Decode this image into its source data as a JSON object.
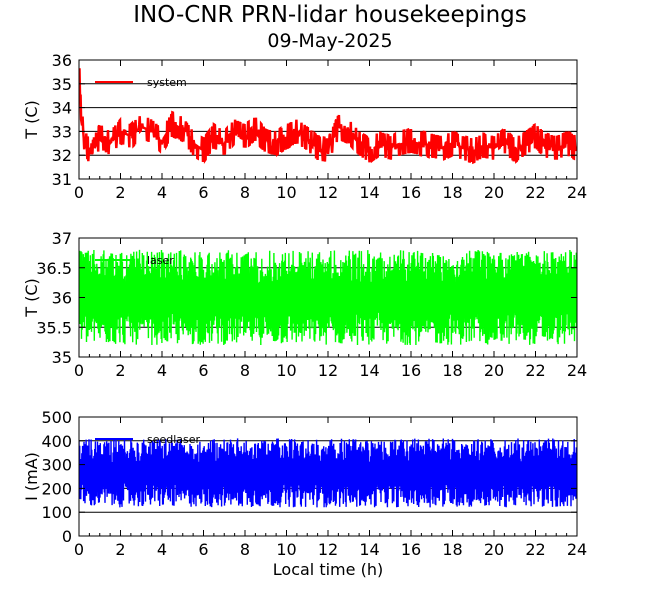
{
  "figure": {
    "title": "INO-CNR PRN-lidar housekeepings",
    "subtitle": "09-May-2025"
  },
  "chart_data": [
    {
      "type": "line",
      "xlabel": "",
      "ylabel": "T (C)",
      "xlim": [
        0,
        24
      ],
      "ylim": [
        31,
        36
      ],
      "xticks": [
        "0",
        "2",
        "4",
        "6",
        "8",
        "10",
        "12",
        "14",
        "16",
        "18",
        "20",
        "22",
        "24"
      ],
      "yticks": [
        "31",
        "32",
        "33",
        "34",
        "35",
        "36"
      ],
      "grid": true,
      "legend_position": "top-left",
      "series": [
        {
          "name": "system",
          "color": "#ff0000",
          "description": "noisy trace stepping between ~32 and ~33.5 C",
          "x": [
            0,
            0.05,
            0.1,
            0.3,
            0.6,
            1.0,
            1.5,
            2.0,
            2.5,
            3.0,
            3.5,
            4.0,
            4.5,
            5.0,
            5.5,
            6.0,
            6.5,
            7.0,
            7.5,
            8.0,
            8.5,
            9.0,
            9.5,
            10.0,
            10.5,
            11.0,
            11.5,
            12.0,
            12.5,
            13.0,
            13.5,
            14.0,
            14.5,
            15.0,
            15.5,
            16.0,
            16.5,
            17.0,
            17.5,
            18.0,
            18.5,
            19.0,
            19.5,
            20.0,
            20.5,
            21.0,
            21.5,
            22.0,
            22.5,
            23.0,
            23.5,
            24.0
          ],
          "y": [
            35.6,
            34.5,
            33.5,
            32.5,
            32.0,
            32.8,
            32.5,
            33.0,
            32.8,
            33.2,
            33.0,
            32.6,
            33.3,
            33.1,
            32.5,
            32.2,
            32.8,
            32.5,
            33.0,
            32.8,
            33.1,
            32.6,
            32.5,
            32.8,
            33.0,
            32.7,
            32.3,
            32.2,
            33.2,
            33.0,
            32.5,
            32.2,
            32.5,
            32.3,
            32.5,
            32.6,
            32.5,
            32.4,
            32.3,
            32.5,
            32.3,
            32.2,
            32.4,
            32.3,
            32.6,
            32.2,
            32.5,
            32.8,
            32.4,
            32.3,
            32.5,
            32.3
          ]
        }
      ]
    },
    {
      "type": "line",
      "xlabel": "",
      "ylabel": "T (C)",
      "xlim": [
        0,
        24
      ],
      "ylim": [
        35,
        37
      ],
      "xticks": [
        "0",
        "2",
        "4",
        "6",
        "8",
        "10",
        "12",
        "14",
        "16",
        "18",
        "20",
        "22",
        "24"
      ],
      "yticks": [
        "35",
        "35.5",
        "36",
        "36.5",
        "37"
      ],
      "grid": true,
      "legend_position": "top-left",
      "series": [
        {
          "name": "laser",
          "color": "#00ff00",
          "description": "dense oscillation between ~35.2 and ~36.8 C",
          "x": [
            0,
            24
          ],
          "y_min": 35.2,
          "y_max": 36.8
        }
      ]
    },
    {
      "type": "line",
      "xlabel": "Local time (h)",
      "ylabel": "I (mA)",
      "xlim": [
        0,
        24
      ],
      "ylim": [
        0,
        500
      ],
      "xticks": [
        "0",
        "2",
        "4",
        "6",
        "8",
        "10",
        "12",
        "14",
        "16",
        "18",
        "20",
        "22",
        "24"
      ],
      "yticks": [
        "0",
        "100",
        "200",
        "300",
        "400",
        "500"
      ],
      "grid": true,
      "legend_position": "top-left",
      "series": [
        {
          "name": "seedlaser",
          "color": "#0000ff",
          "description": "dense band between ~120 and ~410 mA",
          "x": [
            0,
            24
          ],
          "y_min": 120,
          "y_max": 410
        }
      ]
    }
  ]
}
